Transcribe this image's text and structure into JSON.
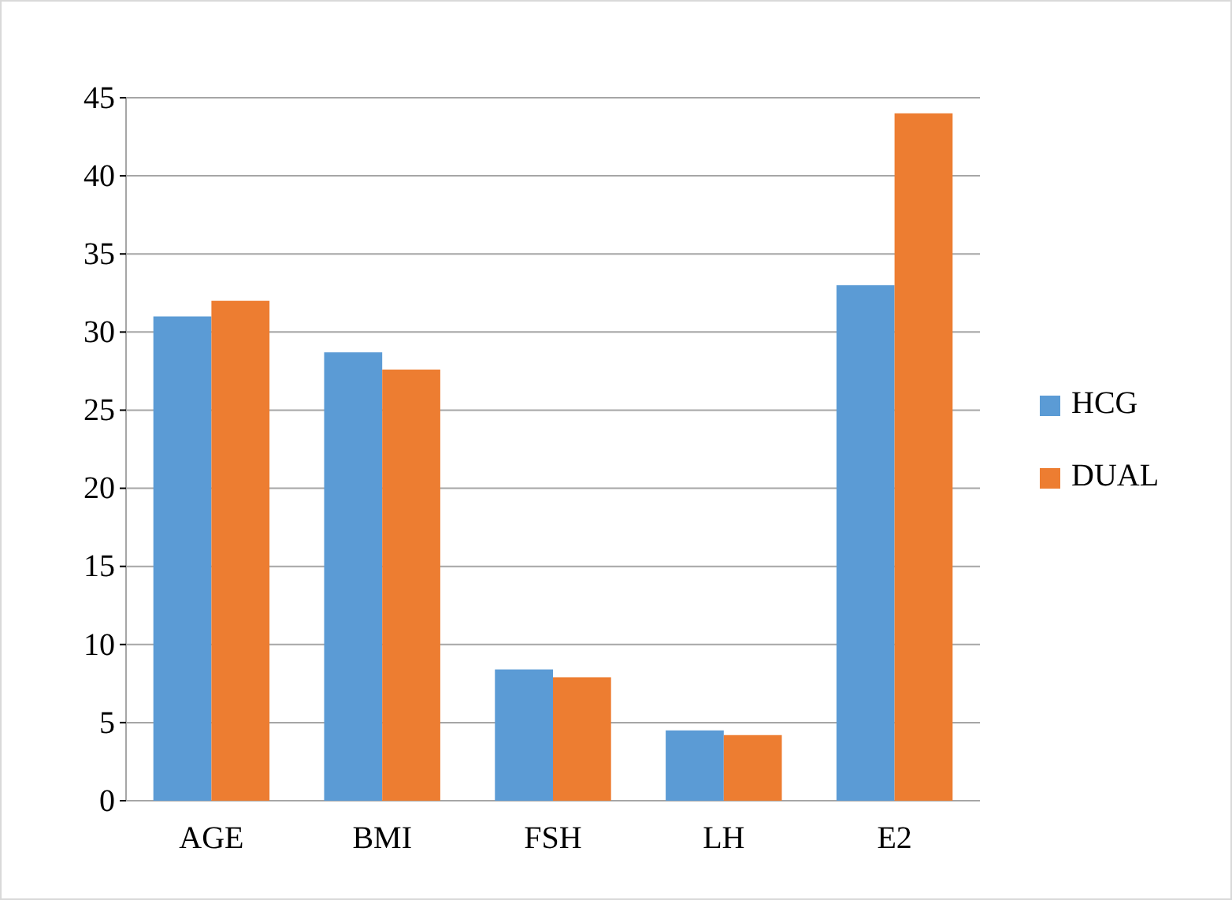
{
  "chart_data": {
    "type": "bar",
    "categories": [
      "AGE",
      "BMI",
      "FSH",
      "LH",
      "E2"
    ],
    "series": [
      {
        "name": "HCG",
        "color": "#5b9bd5",
        "values": [
          31,
          28.7,
          8.4,
          4.5,
          33
        ]
      },
      {
        "name": "DUAL",
        "color": "#ed7d31",
        "values": [
          32,
          27.6,
          7.9,
          4.2,
          44
        ]
      }
    ],
    "ylim": [
      0,
      45
    ],
    "yticks": [
      0,
      5,
      10,
      15,
      20,
      25,
      30,
      35,
      40,
      45
    ],
    "grid": "y",
    "legend": "right"
  }
}
